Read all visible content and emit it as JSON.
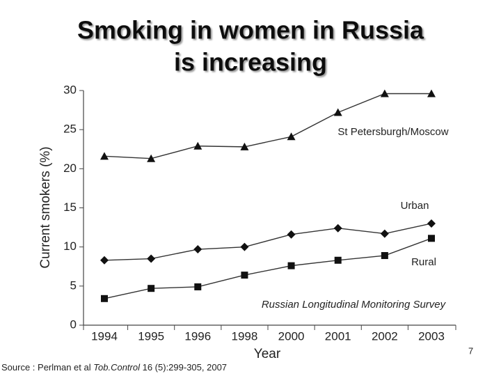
{
  "chart_data": {
    "type": "line",
    "title_lines": [
      "Smoking in women in Russia",
      "is increasing"
    ],
    "x_label": "Year",
    "y_label": "Current smokers (%)",
    "categories": [
      "1994",
      "1995",
      "1996",
      "1998",
      "2000",
      "2001",
      "2002",
      "2003"
    ],
    "series": [
      {
        "name": "St Petersburgh/Moscow",
        "color": "#333333",
        "marker": "triangle",
        "values": [
          21.6,
          21.3,
          22.9,
          22.8,
          24.1,
          27.2,
          29.6,
          29.6
        ]
      },
      {
        "name": "Urban",
        "color": "#333333",
        "marker": "diamond",
        "values": [
          8.3,
          8.5,
          9.7,
          10.0,
          11.6,
          12.4,
          11.7,
          13.0
        ]
      },
      {
        "name": "Rural",
        "color": "#333333",
        "marker": "square",
        "values": [
          3.4,
          4.7,
          4.9,
          6.4,
          7.6,
          8.3,
          8.9,
          11.1
        ]
      }
    ],
    "ylim": [
      0,
      30
    ],
    "yticks": [
      0,
      5,
      10,
      15,
      20,
      25,
      30
    ],
    "annotation": "Russian Longitudinal Monitoring Survey",
    "page_number": "7",
    "source": {
      "prefix": "Source : Perlman et al",
      "journal": "Tob.Control",
      "suffix": "16 (5):299-305, 2007"
    }
  }
}
